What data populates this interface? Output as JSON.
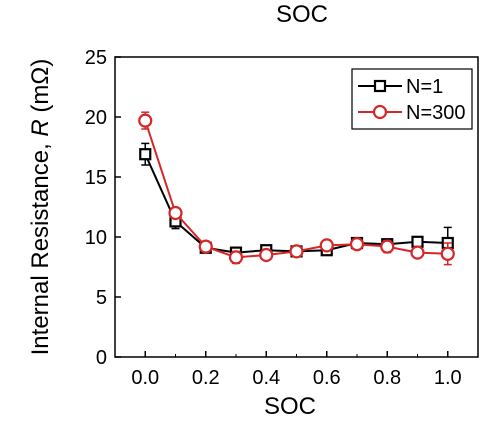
{
  "chart_data": {
    "type": "line",
    "title": "SOC",
    "xlabel": "SOC",
    "ylabel_prefix": "Internal Resistance, ",
    "ylabel_var": "R",
    "ylabel_suffix": " (mΩ)",
    "xlim": [
      -0.1,
      1.1
    ],
    "ylim": [
      0,
      25
    ],
    "x_ticks": [
      "0.0",
      "0.2",
      "0.4",
      "0.6",
      "0.8",
      "1.0"
    ],
    "y_ticks": [
      "0",
      "5",
      "10",
      "15",
      "20",
      "25"
    ],
    "legend_position": "top-right",
    "grid": false,
    "x": [
      0.0,
      0.1,
      0.2,
      0.3,
      0.4,
      0.5,
      0.6,
      0.7,
      0.8,
      0.9,
      1.0
    ],
    "series": [
      {
        "name": "N=1",
        "color": "#000000",
        "marker": "square",
        "values": [
          16.9,
          11.3,
          9.1,
          8.7,
          8.9,
          8.8,
          8.9,
          9.5,
          9.4,
          9.6,
          9.5
        ],
        "errors": [
          0.9,
          0.6,
          0.3,
          0.3,
          0.3,
          0.3,
          0.3,
          0.3,
          0.3,
          0.3,
          1.3
        ]
      },
      {
        "name": "N=300",
        "color": "#d62728",
        "marker": "circle",
        "values": [
          19.7,
          12.0,
          9.2,
          8.3,
          8.5,
          8.8,
          9.3,
          9.4,
          9.2,
          8.7,
          8.6
        ],
        "errors": [
          0.7,
          0.4,
          0.3,
          0.5,
          0.4,
          0.3,
          0.3,
          0.3,
          0.5,
          0.3,
          0.9
        ]
      }
    ]
  }
}
